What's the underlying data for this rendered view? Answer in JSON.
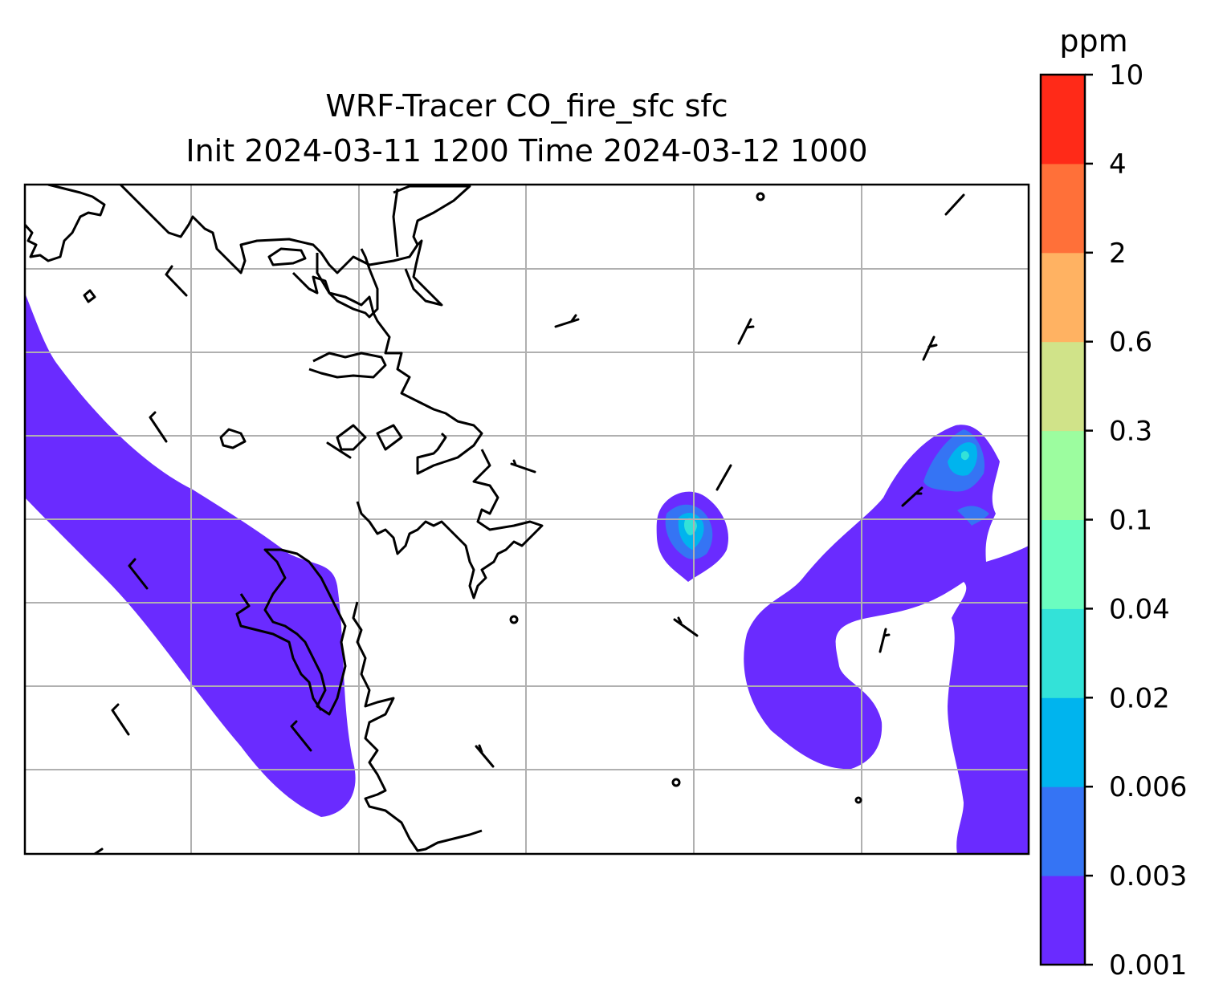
{
  "title": {
    "line1": "WRF-Tracer CO_fire_sfc sfc",
    "line2": "Init 2024-03-11 1200 Time 2024-03-12 1000"
  },
  "colorbar": {
    "unit": "ppm",
    "levels": [
      "0.001",
      "0.003",
      "0.006",
      "0.02",
      "0.04",
      "0.1",
      "0.3",
      "0.6",
      "2",
      "4",
      "10"
    ],
    "colors": [
      "#6a2bff",
      "#3574f4",
      "#00b4ee",
      "#33e2d8",
      "#6bfdc0",
      "#9cfd9f",
      "#d0e389",
      "#ffb262",
      "#ff7039",
      "#ff2a18"
    ]
  },
  "map": {
    "plume_color": "#6a2bff",
    "grid": "on",
    "coastline_color": "#000000",
    "grid_color": "#b0b0b0"
  }
}
